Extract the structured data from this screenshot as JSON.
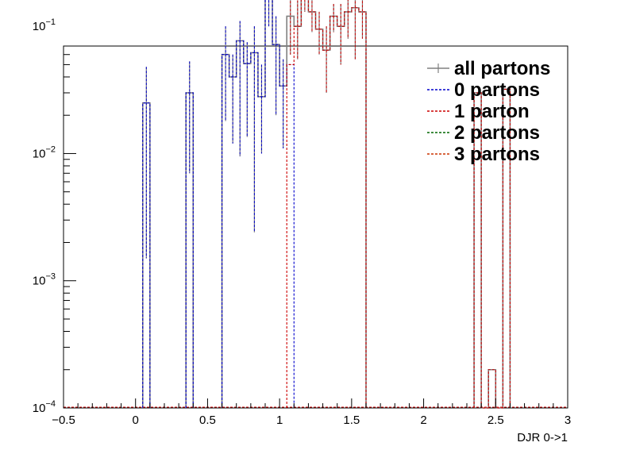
{
  "chart_data": {
    "type": "histogram",
    "title": "",
    "xlabel": "DJR 0->1",
    "ylabel": "",
    "xlim": [
      -0.5,
      3.0
    ],
    "ylim": [
      0.0001,
      0.07
    ],
    "yscale": "log",
    "grid": false,
    "legend_position": "top-right",
    "x_ticks": [
      "−0.5",
      "0",
      "0.5",
      "1",
      "1.5",
      "2",
      "2.5",
      "3"
    ],
    "x_tick_values": [
      -0.5,
      0,
      0.5,
      1,
      1.5,
      2,
      2.5,
      3
    ],
    "y_tick_exponents": [
      "−4",
      "−3",
      "−2",
      "−1"
    ],
    "y_tick_values": [
      0.0001,
      0.001,
      0.01,
      0.1
    ],
    "bin_width": 0.05,
    "series": [
      {
        "name": "all partons",
        "color": "#808080",
        "bins": [
          [
            0.05,
            0.025
          ],
          [
            0.35,
            0.03
          ],
          [
            0.6,
            0.06
          ],
          [
            0.65,
            0.04
          ],
          [
            0.7,
            0.077
          ],
          [
            0.75,
            0.051
          ],
          [
            0.8,
            0.062
          ],
          [
            0.85,
            0.028
          ],
          [
            0.9,
            0.17
          ],
          [
            0.95,
            0.072
          ],
          [
            1.0,
            0.034
          ],
          [
            1.05,
            0.12
          ],
          [
            1.1,
            0.1
          ],
          [
            1.15,
            0.19
          ],
          [
            1.2,
            0.13
          ],
          [
            1.25,
            0.095
          ],
          [
            1.3,
            0.065
          ],
          [
            1.35,
            0.12
          ],
          [
            1.4,
            0.1
          ],
          [
            1.45,
            0.13
          ],
          [
            1.5,
            0.14
          ],
          [
            1.55,
            0.13
          ],
          [
            2.35,
            0.03
          ],
          [
            2.4,
            0.0001
          ],
          [
            2.45,
            0.0002
          ],
          [
            2.5,
            0.0001
          ],
          [
            2.55,
            0.032
          ]
        ],
        "errors": [
          [
            0.05,
            0.0015,
            0.048
          ],
          [
            0.35,
            0.007,
            0.053
          ],
          [
            0.6,
            0.018,
            0.1
          ],
          [
            0.65,
            0.012,
            0.06
          ],
          [
            0.7,
            0.0095,
            0.11
          ],
          [
            0.75,
            0.0135,
            0.075
          ],
          [
            0.8,
            0.0024,
            0.1
          ],
          [
            0.85,
            0.01,
            0.05
          ],
          [
            0.9,
            0.1,
            0.23
          ],
          [
            0.95,
            0.02,
            0.12
          ],
          [
            1.0,
            0.011,
            0.055
          ],
          [
            1.05,
            0.06,
            0.17
          ],
          [
            1.1,
            0.055,
            0.16
          ],
          [
            1.15,
            0.13,
            0.25
          ],
          [
            1.2,
            0.09,
            0.17
          ],
          [
            1.25,
            0.06,
            0.13
          ],
          [
            1.3,
            0.03,
            0.1
          ],
          [
            1.35,
            0.09,
            0.15
          ],
          [
            1.4,
            0.05,
            0.15
          ],
          [
            1.45,
            0.08,
            0.19
          ],
          [
            1.5,
            0.055,
            0.21
          ],
          [
            1.55,
            0.08,
            0.17
          ]
        ]
      },
      {
        "name": "0 partons",
        "color": "#0000cc",
        "bins": [
          [
            0.05,
            0.025
          ],
          [
            0.35,
            0.03
          ],
          [
            0.6,
            0.06
          ],
          [
            0.65,
            0.04
          ],
          [
            0.7,
            0.077
          ],
          [
            0.75,
            0.051
          ],
          [
            0.8,
            0.062
          ],
          [
            0.85,
            0.028
          ],
          [
            0.9,
            0.17
          ],
          [
            0.95,
            0.072
          ],
          [
            1.0,
            0.034
          ],
          [
            1.05,
            0.05
          ]
        ]
      },
      {
        "name": "1 parton",
        "color": "#cc0000",
        "bins": [
          [
            1.05,
            0.05
          ],
          [
            1.1,
            0.1
          ],
          [
            1.15,
            0.19
          ],
          [
            1.2,
            0.13
          ],
          [
            1.25,
            0.095
          ],
          [
            1.3,
            0.065
          ],
          [
            1.35,
            0.12
          ],
          [
            1.4,
            0.1
          ],
          [
            1.45,
            0.13
          ],
          [
            1.5,
            0.14
          ],
          [
            1.55,
            0.13
          ],
          [
            2.35,
            0.03
          ],
          [
            2.4,
            0.0001
          ],
          [
            2.45,
            0.0002
          ],
          [
            2.5,
            0.0001
          ],
          [
            2.55,
            0.032
          ]
        ]
      },
      {
        "name": "2 partons",
        "color": "#006600",
        "bins": []
      },
      {
        "name": "3 partons",
        "color": "#cc3300",
        "bins": []
      }
    ]
  }
}
